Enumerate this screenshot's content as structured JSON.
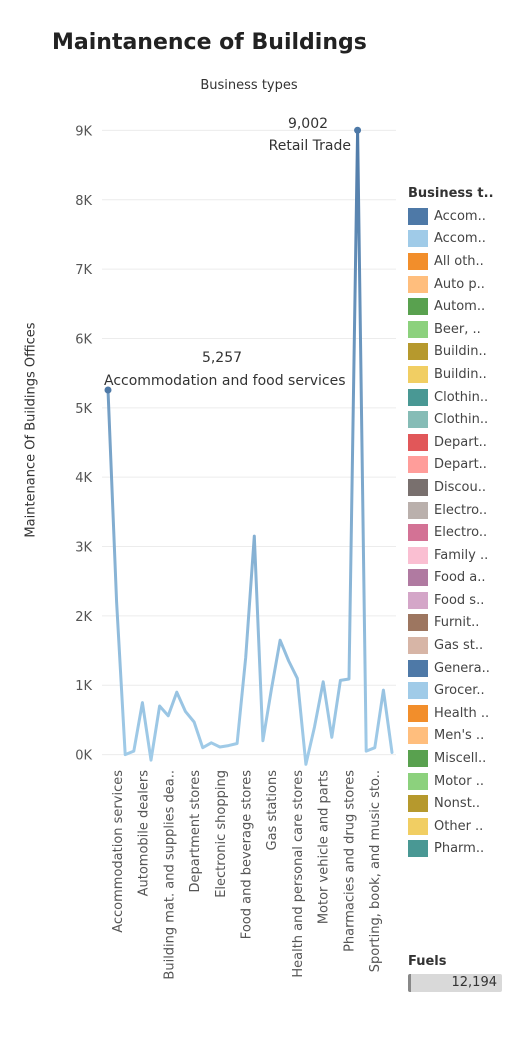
{
  "chart_data": {
    "type": "line",
    "title": "Maintanence of Buildings",
    "subtitle": "Business types",
    "ylabel": "Maintenance Of Buildings Offices",
    "ylim": [
      -150,
      9150
    ],
    "y_ticks": [
      0,
      1000,
      2000,
      3000,
      4000,
      5000,
      6000,
      7000,
      8000,
      9000
    ],
    "y_tick_labels": [
      "0K",
      "1K",
      "2K",
      "3K",
      "4K",
      "5K",
      "6K",
      "7K",
      "8K",
      "9K"
    ],
    "x_tick_labels": [
      "Accommodation services",
      "Automobile dealers",
      "Building mat. and supplies dea..",
      "Department stores",
      "Electronic shopping",
      "Food and beverage stores",
      "Gas stations",
      "Health and personal care stores",
      "Motor vehicle and parts",
      "Pharmacies and drug stores",
      "Sporting, book, and music sto.."
    ],
    "values": [
      5257,
      2200,
      0,
      50,
      750,
      -80,
      700,
      560,
      900,
      620,
      470,
      100,
      170,
      110,
      130,
      160,
      1400,
      3150,
      200,
      950,
      1650,
      1350,
      1100,
      -140,
      400,
      1050,
      250,
      1070,
      1090,
      9002,
      50,
      100,
      930,
      30
    ],
    "annotations": [
      {
        "value": "5,257",
        "label": "Accommodation and food services"
      },
      {
        "value": "9,002",
        "label": "Retail Trade"
      }
    ],
    "line_colors": {
      "start": "#4e79a7",
      "end": "#a0cbe8"
    }
  },
  "legend": {
    "title": "Business t..",
    "items": [
      {
        "label": "Accom..",
        "color": "#4e79a7"
      },
      {
        "label": "Accom..",
        "color": "#a0cbe8"
      },
      {
        "label": "All oth..",
        "color": "#f28e2b"
      },
      {
        "label": "Auto p..",
        "color": "#ffbe7d"
      },
      {
        "label": "Autom..",
        "color": "#59a14f"
      },
      {
        "label": "Beer, ..",
        "color": "#8cd17d"
      },
      {
        "label": "Buildin..",
        "color": "#b6992d"
      },
      {
        "label": "Buildin..",
        "color": "#f1ce63"
      },
      {
        "label": "Clothin..",
        "color": "#499894"
      },
      {
        "label": "Clothin..",
        "color": "#86bcb6"
      },
      {
        "label": "Depart..",
        "color": "#e15759"
      },
      {
        "label": "Depart..",
        "color": "#ff9d9a"
      },
      {
        "label": "Discou..",
        "color": "#79706e"
      },
      {
        "label": "Electro..",
        "color": "#bab0ac"
      },
      {
        "label": "Electro..",
        "color": "#d37295"
      },
      {
        "label": "Family ..",
        "color": "#fabfd2"
      },
      {
        "label": "Food a..",
        "color": "#b07aa1"
      },
      {
        "label": "Food s..",
        "color": "#d4a6c8"
      },
      {
        "label": "Furnit..",
        "color": "#9d7660"
      },
      {
        "label": "Gas st..",
        "color": "#d7b5a6"
      },
      {
        "label": "Genera..",
        "color": "#4e79a7"
      },
      {
        "label": "Grocer..",
        "color": "#a0cbe8"
      },
      {
        "label": "Health ..",
        "color": "#f28e2b"
      },
      {
        "label": "Men's ..",
        "color": "#ffbe7d"
      },
      {
        "label": "Miscell..",
        "color": "#59a14f"
      },
      {
        "label": "Motor ..",
        "color": "#8cd17d"
      },
      {
        "label": "Nonst..",
        "color": "#b6992d"
      },
      {
        "label": "Other ..",
        "color": "#f1ce63"
      },
      {
        "label": "Pharm..",
        "color": "#499894"
      }
    ]
  },
  "filter": {
    "label": "Fuels",
    "value": "12,194"
  }
}
